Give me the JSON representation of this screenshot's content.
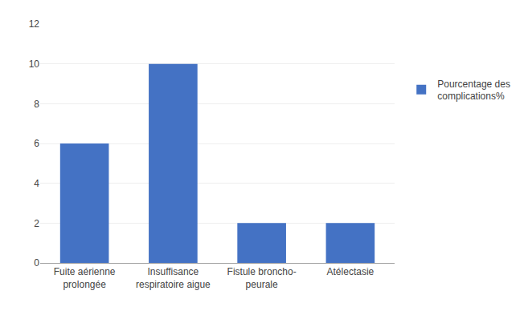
{
  "chart_data": {
    "type": "bar",
    "categories": [
      "Fuite aérienne\nprolongée",
      "Insuffisance\nrespiratoire aigue",
      "Fistule broncho-\npeurale",
      "Atélectasie"
    ],
    "series": [
      {
        "name": "Pourcentage des\ncomplications%",
        "color": "#4472C4",
        "values": [
          6,
          10,
          2,
          2
        ]
      }
    ],
    "ylim": [
      0,
      12
    ],
    "yticks": [
      0,
      2,
      4,
      6,
      8,
      10,
      12
    ],
    "grid": true,
    "legend": "right"
  }
}
